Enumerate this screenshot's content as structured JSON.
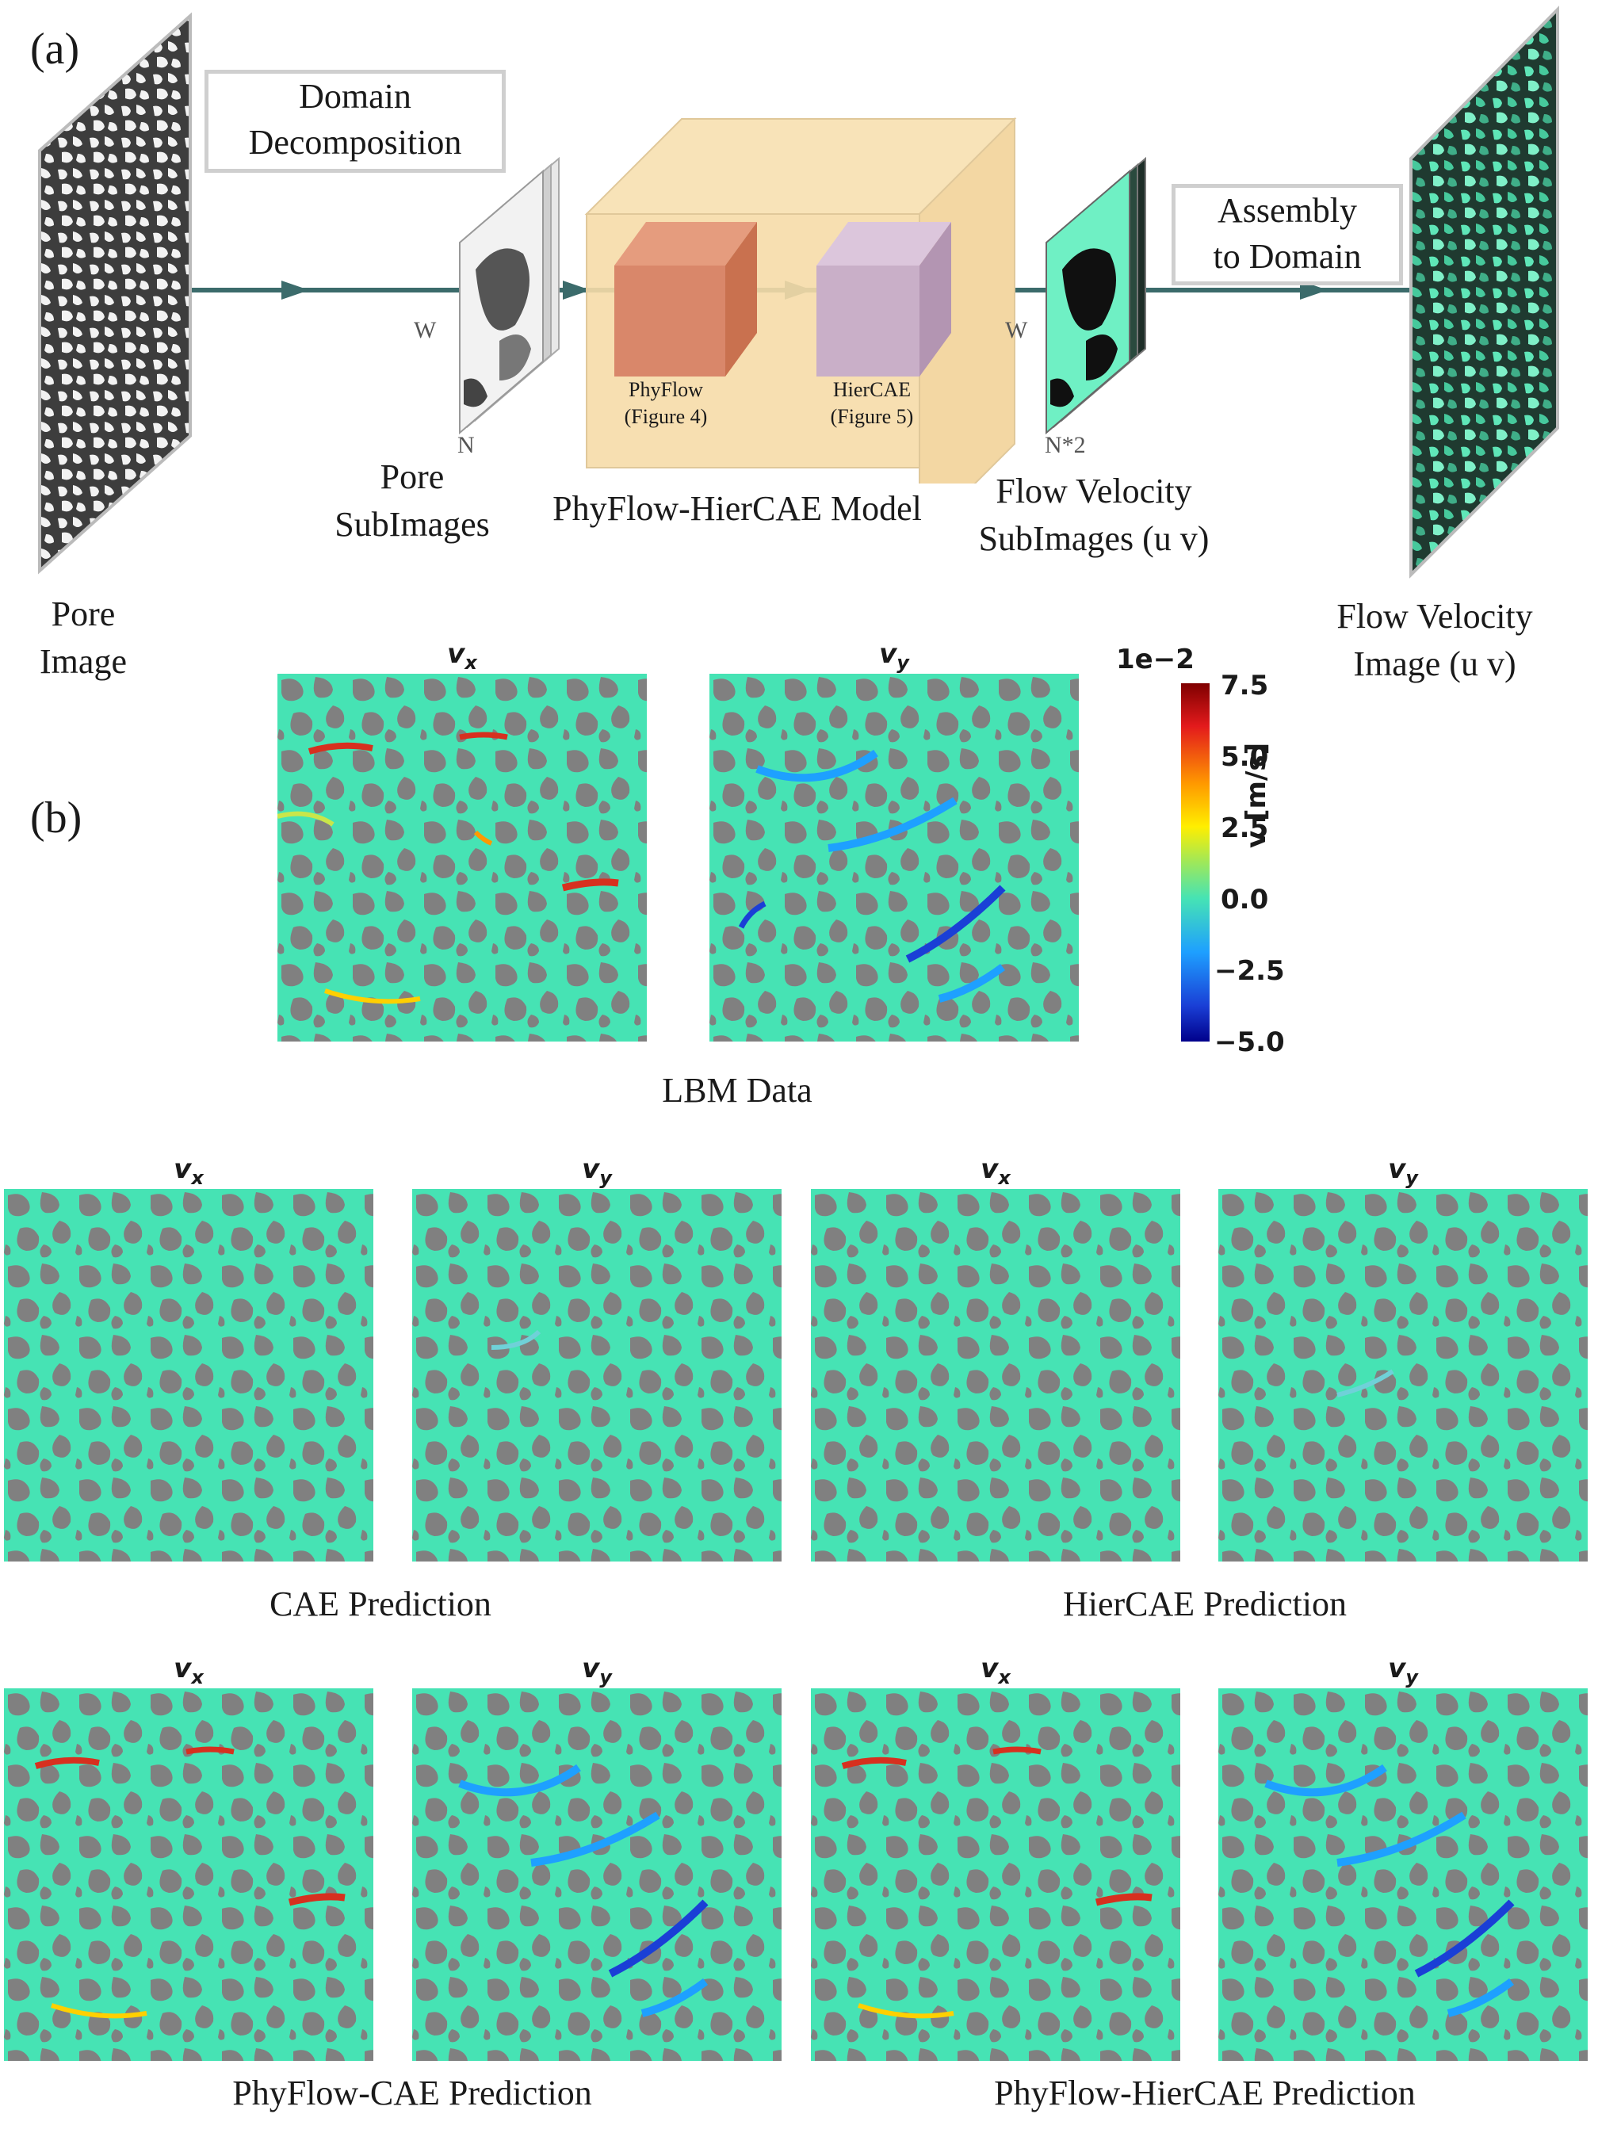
{
  "panel_a": {
    "label": "(a)",
    "domain_decomposition": [
      "Domain",
      "Decomposition"
    ],
    "pore_image": [
      "Pore",
      "Image"
    ],
    "pore_subimages": [
      "Pore",
      "SubImages"
    ],
    "model_title": "PhyFlow-HierCAE Model",
    "phyflow": [
      "PhyFlow",
      "(Figure 4)"
    ],
    "hiercae": [
      "HierCAE",
      "(Figure 5)"
    ],
    "flow_subimages": [
      "Flow Velocity",
      "SubImages (u v)"
    ],
    "assembly": [
      "Assembly",
      "to Domain"
    ],
    "flow_image": [
      "Flow Velocity",
      "Image (u v)"
    ],
    "dim_w": "W",
    "dim_n": "N",
    "dim_n2": "N*2"
  },
  "panel_b": {
    "label": "(b)",
    "vx": "v",
    "vx_sub": "x",
    "vy": "v",
    "vy_sub": "y",
    "colorbar": {
      "exponent": "1e−2",
      "ticks": [
        "7.5",
        "5.0",
        "2.5",
        "0.0",
        "−2.5",
        "−5.0"
      ],
      "label": "v [m/s]"
    },
    "captions": {
      "lbm": "LBM Data",
      "cae": "CAE Prediction",
      "hiercae": "HierCAE Prediction",
      "phyflow_cae": "PhyFlow-CAE Prediction",
      "phyflow_hiercae": "PhyFlow-HierCAE Prediction"
    }
  },
  "colors": {
    "flow_bg": "#46e3b4",
    "solid": "#808080",
    "high": "#d7301f",
    "low": "#1a3fd6",
    "arrow": "#3b6b6b",
    "model_box": "#f6dca8",
    "phyflow_cube": "#d9876a",
    "hiercae_cube": "#c9afc8"
  }
}
